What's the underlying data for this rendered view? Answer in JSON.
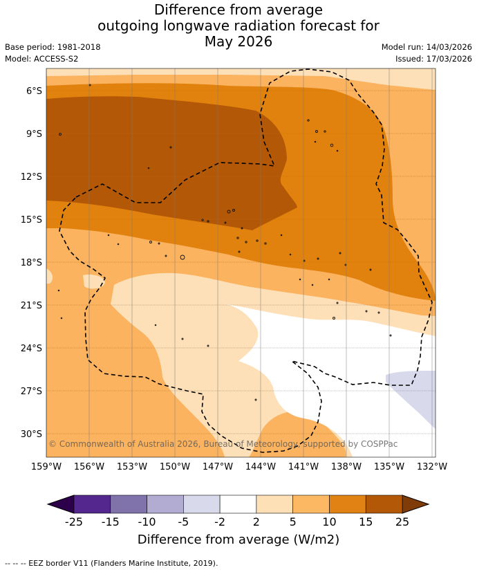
{
  "title": {
    "line1": "Difference from average",
    "line2": "outgoing longwave radiation forecast for",
    "line3": "May 2026"
  },
  "meta": {
    "base_period": "Base period: 1981-2018",
    "model": "Model: ACCESS-S2",
    "model_run": "Model run: 14/03/2026",
    "issued": "Issued: 17/03/2026"
  },
  "map": {
    "lat_labels": [
      "6°S",
      "9°S",
      "12°S",
      "15°S",
      "18°S",
      "21°S",
      "24°S",
      "27°S",
      "30°S"
    ],
    "lon_labels": [
      "159°W",
      "156°W",
      "153°W",
      "150°W",
      "147°W",
      "144°W",
      "141°W",
      "138°W",
      "135°W",
      "132°W"
    ],
    "copyright": "© Commonwealth of Australia 2026, Bureau of Meteorology, supported by COSPPac",
    "colors": {
      "band_2_5": "#fde0b8",
      "band_5_10": "#fbb35f",
      "band_10_15": "#e1820f",
      "band_15_25": "#b35806",
      "band_m2_2": "#ffffff",
      "band_m5_m2": "#d8daeb"
    }
  },
  "colorbar": {
    "title": "Difference from average (W/m2)",
    "ticks": [
      "-25",
      "-15",
      "-10",
      "-5",
      "-2",
      "2",
      "5",
      "10",
      "15",
      "25"
    ],
    "colors": [
      "#54278f",
      "#8073ac",
      "#b2abd2",
      "#d8daeb",
      "#ffffff",
      "#fee0b6",
      "#fdb863",
      "#e08214",
      "#b35806"
    ],
    "low_color": "#2d004b",
    "high_color": "#7f3b08"
  },
  "footer": "--  --  -- EEZ border V11 (Flanders Marine Institute, 2019)."
}
